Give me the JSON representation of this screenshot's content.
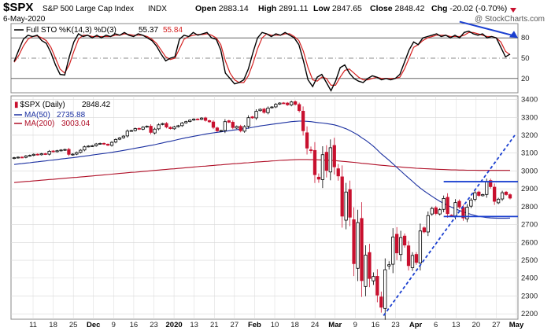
{
  "header": {
    "symbol": "$SPX",
    "name": "S&P 500 Large Cap Index",
    "exchange": "INDX",
    "date": "6-May-2020",
    "ohlc": [
      {
        "label": "Open",
        "value": "2883.14"
      },
      {
        "label": "High",
        "value": "2891.11"
      },
      {
        "label": "Low",
        "value": "2847.65"
      },
      {
        "label": "Close",
        "value": "2848.42"
      },
      {
        "label": "Chg",
        "value": "-20.02 (-0.70%)"
      }
    ],
    "watermark": "@ StockCharts.com"
  },
  "colors": {
    "price_up": "#000000",
    "price_down": "#c8102e",
    "ma50": "#1a2fa0",
    "ma200": "#b01028",
    "sto_k": "#000000",
    "sto_d": "#d42020",
    "annotation": "#1a3fd0",
    "grid": "#d8d8d8"
  },
  "chart_data": [
    {
      "type": "line",
      "name": "stochastic",
      "legend": {
        "title": "Full STO %K(14,3) %D(3)",
        "k_value": "55.37",
        "d_value": "55.84"
      },
      "ylim": [
        0,
        100
      ],
      "yticks": [
        20,
        50,
        80
      ],
      "ref_lines": [
        20,
        50,
        80
      ],
      "k": [
        45,
        62,
        78,
        84,
        82,
        84,
        76,
        72,
        58,
        40,
        26,
        25,
        52,
        74,
        86,
        82,
        84,
        80,
        84,
        80,
        84,
        82,
        86,
        84,
        88,
        84,
        82,
        86,
        84,
        80,
        76,
        68,
        56,
        46,
        50,
        52,
        78,
        84,
        82,
        88,
        84,
        86,
        88,
        80,
        78,
        62,
        28,
        20,
        12,
        14,
        18,
        34,
        58,
        80,
        88,
        86,
        82,
        86,
        84,
        88,
        84,
        80,
        70,
        46,
        18,
        8,
        22,
        26,
        14,
        2,
        16,
        36,
        40,
        28,
        20,
        16,
        14,
        20,
        24,
        22,
        18,
        20,
        18,
        20,
        26,
        44,
        62,
        74,
        70,
        80,
        82,
        84,
        86,
        82,
        84,
        80,
        84,
        80,
        88,
        90,
        86,
        84,
        86,
        80,
        82,
        80,
        66,
        52,
        56
      ],
      "d": [
        44,
        54,
        68,
        78,
        82,
        83,
        80,
        76,
        66,
        50,
        34,
        28,
        40,
        60,
        78,
        84,
        84,
        82,
        82,
        82,
        82,
        82,
        84,
        84,
        86,
        85,
        84,
        84,
        84,
        82,
        78,
        72,
        62,
        52,
        48,
        50,
        64,
        78,
        82,
        84,
        85,
        85,
        86,
        84,
        80,
        70,
        46,
        28,
        18,
        14,
        14,
        24,
        42,
        64,
        80,
        86,
        84,
        84,
        84,
        86,
        86,
        82,
        76,
        60,
        36,
        18,
        16,
        22,
        20,
        10,
        10,
        22,
        32,
        34,
        28,
        22,
        18,
        18,
        20,
        22,
        20,
        20,
        20,
        20,
        22,
        34,
        50,
        66,
        70,
        76,
        80,
        82,
        84,
        84,
        84,
        82,
        82,
        82,
        84,
        88,
        88,
        86,
        84,
        82,
        82,
        80,
        74,
        60,
        55
      ]
    },
    {
      "type": "candlestick",
      "name": "price",
      "legend": {
        "price_label": "$SPX (Daily)",
        "price_value": "2848.42",
        "ma50_label": "MA(50)",
        "ma50_value": "2735.88",
        "ma200_label": "MA(200)",
        "ma200_value": "3003.04"
      },
      "ylim": [
        2170,
        3420
      ],
      "yticks": [
        2200,
        2300,
        2400,
        2500,
        2600,
        2700,
        2800,
        2900,
        3000,
        3100,
        3200,
        3300,
        3400
      ],
      "x_ticks": [
        {
          "label": "11",
          "bold": false
        },
        {
          "label": "18",
          "bold": false
        },
        {
          "label": "25",
          "bold": false
        },
        {
          "label": "Dec",
          "bold": true
        },
        {
          "label": "9",
          "bold": false
        },
        {
          "label": "16",
          "bold": false
        },
        {
          "label": "23",
          "bold": false
        },
        {
          "label": "2020",
          "bold": true
        },
        {
          "label": "13",
          "bold": false
        },
        {
          "label": "21",
          "bold": false
        },
        {
          "label": "27",
          "bold": false
        },
        {
          "label": "Feb",
          "bold": true
        },
        {
          "label": "10",
          "bold": false
        },
        {
          "label": "18",
          "bold": false
        },
        {
          "label": "24",
          "bold": false
        },
        {
          "label": "Mar",
          "bold": true
        },
        {
          "label": "9",
          "bold": false
        },
        {
          "label": "16",
          "bold": false
        },
        {
          "label": "23",
          "bold": false
        },
        {
          "label": "Apr",
          "bold": true
        },
        {
          "label": "6",
          "bold": false
        },
        {
          "label": "13",
          "bold": false
        },
        {
          "label": "20",
          "bold": false
        },
        {
          "label": "27",
          "bold": false
        },
        {
          "label": "May",
          "bold": true
        }
      ],
      "close": [
        3074,
        3077,
        3076,
        3084,
        3087,
        3093,
        3091,
        3096,
        3094,
        3110,
        3108,
        3113,
        3117,
        3120,
        3093,
        3094,
        3103,
        3116,
        3135,
        3139,
        3141,
        3151,
        3154,
        3150,
        3144,
        3160,
        3176,
        3185,
        3195,
        3223,
        3226,
        3237,
        3234,
        3245,
        3250,
        3216,
        3234,
        3258,
        3265,
        3246,
        3237,
        3247,
        3253,
        3268,
        3276,
        3284,
        3290,
        3289,
        3296,
        3283,
        3275,
        3244,
        3225,
        3226,
        3276,
        3273,
        3243,
        3249,
        3225,
        3248,
        3298,
        3297,
        3334,
        3345,
        3328,
        3352,
        3358,
        3373,
        3380,
        3380,
        3370,
        3386,
        3373,
        3338,
        3225,
        3128,
        3116,
        2979,
        2954,
        3091,
        3003,
        3130,
        3023,
        2972,
        2747,
        2882,
        2741,
        2481,
        2711,
        2386,
        2529,
        2398,
        2409,
        2305,
        2237,
        2447,
        2475,
        2630,
        2541,
        2627,
        2585,
        2470,
        2527,
        2488,
        2664,
        2659,
        2750,
        2790,
        2762,
        2783,
        2846,
        2761,
        2749,
        2823,
        2798,
        2737,
        2797,
        2837,
        2878,
        2863,
        2868,
        2939,
        2912,
        2830,
        2842,
        2878,
        2868,
        2848
      ],
      "ma50": [
        3036,
        3039,
        3041,
        3044,
        3046,
        3049,
        3051,
        3054,
        3056,
        3059,
        3061,
        3064,
        3067,
        3069,
        3072,
        3074,
        3077,
        3080,
        3083,
        3086,
        3089,
        3092,
        3095,
        3098,
        3101,
        3104,
        3108,
        3111,
        3115,
        3119,
        3123,
        3127,
        3131,
        3135,
        3139,
        3143,
        3147,
        3152,
        3157,
        3162,
        3166,
        3171,
        3176,
        3181,
        3186,
        3190,
        3194,
        3198,
        3202,
        3206,
        3210,
        3213,
        3216,
        3219,
        3222,
        3225,
        3228,
        3231,
        3234,
        3237,
        3240,
        3244,
        3248,
        3252,
        3255,
        3258,
        3261,
        3264,
        3267,
        3270,
        3273,
        3276,
        3278,
        3279,
        3279,
        3278,
        3276,
        3273,
        3270,
        3268,
        3265,
        3262,
        3258,
        3252,
        3244,
        3236,
        3226,
        3214,
        3202,
        3186,
        3172,
        3156,
        3138,
        3118,
        3096,
        3078,
        3060,
        3040,
        3020,
        3000,
        2980,
        2961,
        2942,
        2922,
        2904,
        2888,
        2873,
        2858,
        2844,
        2830,
        2818,
        2807,
        2797,
        2788,
        2779,
        2771,
        2764,
        2757,
        2751,
        2746,
        2742,
        2739,
        2737,
        2736,
        2735,
        2735,
        2735,
        2736
      ],
      "ma200": [
        2935,
        2937,
        2939,
        2941,
        2942,
        2944,
        2946,
        2948,
        2950,
        2952,
        2953,
        2955,
        2957,
        2959,
        2961,
        2963,
        2964,
        2966,
        2968,
        2970,
        2972,
        2974,
        2976,
        2978,
        2980,
        2982,
        2984,
        2986,
        2988,
        2990,
        2992,
        2993,
        2995,
        2997,
        2999,
        3001,
        3003,
        3005,
        3007,
        3009,
        3011,
        3012,
        3014,
        3016,
        3018,
        3020,
        3022,
        3024,
        3026,
        3027,
        3029,
        3031,
        3033,
        3034,
        3036,
        3038,
        3040,
        3041,
        3043,
        3045,
        3046,
        3048,
        3050,
        3051,
        3053,
        3054,
        3056,
        3057,
        3059,
        3060,
        3061,
        3062,
        3063,
        3064,
        3064,
        3064,
        3063,
        3063,
        3062,
        3061,
        3060,
        3059,
        3058,
        3056,
        3054,
        3052,
        3050,
        3048,
        3046,
        3043,
        3041,
        3039,
        3036,
        3034,
        3032,
        3030,
        3028,
        3026,
        3024,
        3022,
        3020,
        3018,
        3017,
        3015,
        3014,
        3013,
        3012,
        3011,
        3010,
        3009,
        3008,
        3007,
        3006,
        3006,
        3005,
        3005,
        3004,
        3004,
        3004,
        3003,
        3003,
        3003,
        3003,
        3003,
        3003,
        3003,
        3003,
        3003
      ]
    }
  ]
}
